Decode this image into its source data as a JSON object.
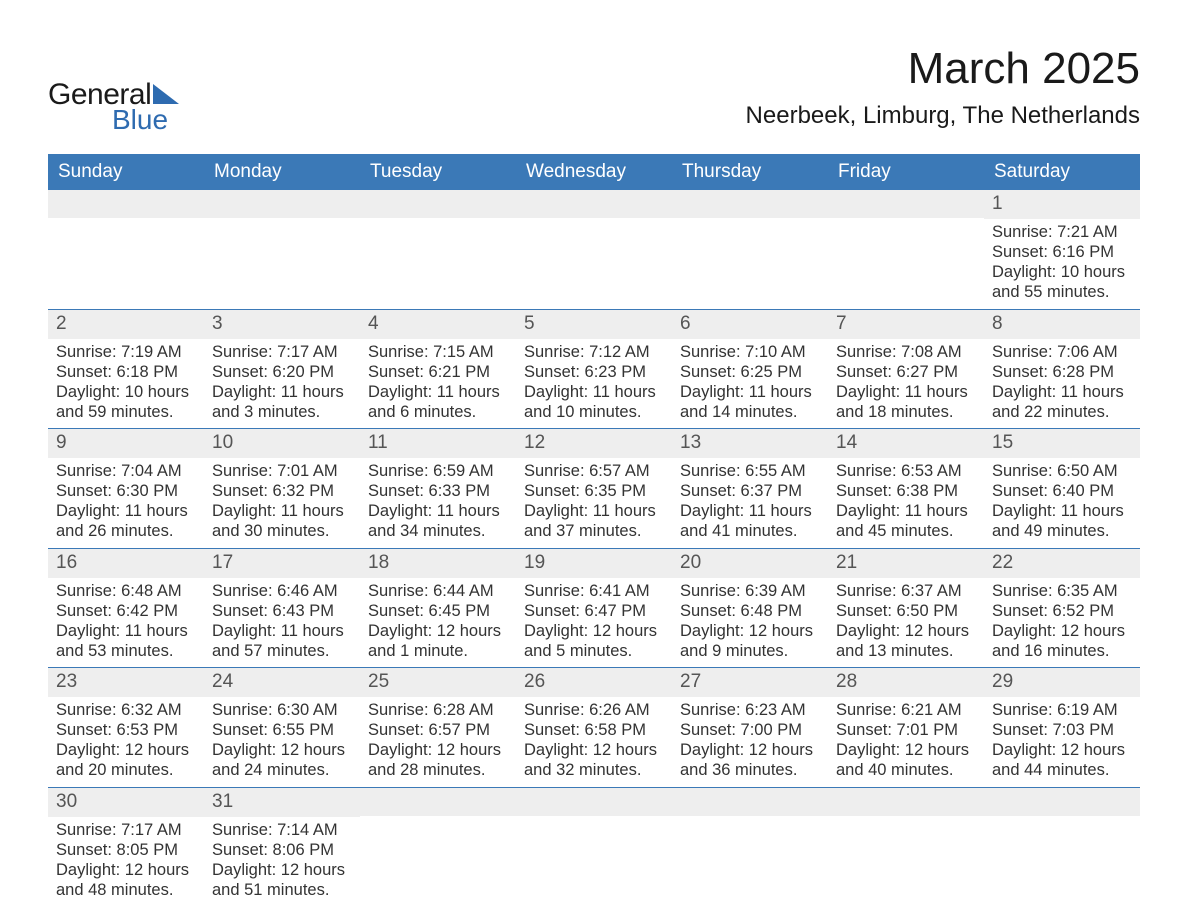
{
  "brand": {
    "general": "General",
    "blue": "Blue",
    "logo_color": "#2e6bb0"
  },
  "title": "March 2025",
  "location": "Neerbeek, Limburg, The Netherlands",
  "colors": {
    "header_bg": "#3b79b7",
    "header_text": "#ffffff",
    "band_bg": "#eeeeee",
    "row_border": "#3b79b7",
    "body_text": "#333333",
    "daynum_text": "#555555"
  },
  "dow": [
    "Sunday",
    "Monday",
    "Tuesday",
    "Wednesday",
    "Thursday",
    "Friday",
    "Saturday"
  ],
  "weeks": [
    [
      {
        "n": "",
        "lines": []
      },
      {
        "n": "",
        "lines": []
      },
      {
        "n": "",
        "lines": []
      },
      {
        "n": "",
        "lines": []
      },
      {
        "n": "",
        "lines": []
      },
      {
        "n": "",
        "lines": []
      },
      {
        "n": "1",
        "lines": [
          "Sunrise: 7:21 AM",
          "Sunset: 6:16 PM",
          "Daylight: 10 hours and 55 minutes."
        ]
      }
    ],
    [
      {
        "n": "2",
        "lines": [
          "Sunrise: 7:19 AM",
          "Sunset: 6:18 PM",
          "Daylight: 10 hours and 59 minutes."
        ]
      },
      {
        "n": "3",
        "lines": [
          "Sunrise: 7:17 AM",
          "Sunset: 6:20 PM",
          "Daylight: 11 hours and 3 minutes."
        ]
      },
      {
        "n": "4",
        "lines": [
          "Sunrise: 7:15 AM",
          "Sunset: 6:21 PM",
          "Daylight: 11 hours and 6 minutes."
        ]
      },
      {
        "n": "5",
        "lines": [
          "Sunrise: 7:12 AM",
          "Sunset: 6:23 PM",
          "Daylight: 11 hours and 10 minutes."
        ]
      },
      {
        "n": "6",
        "lines": [
          "Sunrise: 7:10 AM",
          "Sunset: 6:25 PM",
          "Daylight: 11 hours and 14 minutes."
        ]
      },
      {
        "n": "7",
        "lines": [
          "Sunrise: 7:08 AM",
          "Sunset: 6:27 PM",
          "Daylight: 11 hours and 18 minutes."
        ]
      },
      {
        "n": "8",
        "lines": [
          "Sunrise: 7:06 AM",
          "Sunset: 6:28 PM",
          "Daylight: 11 hours and 22 minutes."
        ]
      }
    ],
    [
      {
        "n": "9",
        "lines": [
          "Sunrise: 7:04 AM",
          "Sunset: 6:30 PM",
          "Daylight: 11 hours and 26 minutes."
        ]
      },
      {
        "n": "10",
        "lines": [
          "Sunrise: 7:01 AM",
          "Sunset: 6:32 PM",
          "Daylight: 11 hours and 30 minutes."
        ]
      },
      {
        "n": "11",
        "lines": [
          "Sunrise: 6:59 AM",
          "Sunset: 6:33 PM",
          "Daylight: 11 hours and 34 minutes."
        ]
      },
      {
        "n": "12",
        "lines": [
          "Sunrise: 6:57 AM",
          "Sunset: 6:35 PM",
          "Daylight: 11 hours and 37 minutes."
        ]
      },
      {
        "n": "13",
        "lines": [
          "Sunrise: 6:55 AM",
          "Sunset: 6:37 PM",
          "Daylight: 11 hours and 41 minutes."
        ]
      },
      {
        "n": "14",
        "lines": [
          "Sunrise: 6:53 AM",
          "Sunset: 6:38 PM",
          "Daylight: 11 hours and 45 minutes."
        ]
      },
      {
        "n": "15",
        "lines": [
          "Sunrise: 6:50 AM",
          "Sunset: 6:40 PM",
          "Daylight: 11 hours and 49 minutes."
        ]
      }
    ],
    [
      {
        "n": "16",
        "lines": [
          "Sunrise: 6:48 AM",
          "Sunset: 6:42 PM",
          "Daylight: 11 hours and 53 minutes."
        ]
      },
      {
        "n": "17",
        "lines": [
          "Sunrise: 6:46 AM",
          "Sunset: 6:43 PM",
          "Daylight: 11 hours and 57 minutes."
        ]
      },
      {
        "n": "18",
        "lines": [
          "Sunrise: 6:44 AM",
          "Sunset: 6:45 PM",
          "Daylight: 12 hours and 1 minute."
        ]
      },
      {
        "n": "19",
        "lines": [
          "Sunrise: 6:41 AM",
          "Sunset: 6:47 PM",
          "Daylight: 12 hours and 5 minutes."
        ]
      },
      {
        "n": "20",
        "lines": [
          "Sunrise: 6:39 AM",
          "Sunset: 6:48 PM",
          "Daylight: 12 hours and 9 minutes."
        ]
      },
      {
        "n": "21",
        "lines": [
          "Sunrise: 6:37 AM",
          "Sunset: 6:50 PM",
          "Daylight: 12 hours and 13 minutes."
        ]
      },
      {
        "n": "22",
        "lines": [
          "Sunrise: 6:35 AM",
          "Sunset: 6:52 PM",
          "Daylight: 12 hours and 16 minutes."
        ]
      }
    ],
    [
      {
        "n": "23",
        "lines": [
          "Sunrise: 6:32 AM",
          "Sunset: 6:53 PM",
          "Daylight: 12 hours and 20 minutes."
        ]
      },
      {
        "n": "24",
        "lines": [
          "Sunrise: 6:30 AM",
          "Sunset: 6:55 PM",
          "Daylight: 12 hours and 24 minutes."
        ]
      },
      {
        "n": "25",
        "lines": [
          "Sunrise: 6:28 AM",
          "Sunset: 6:57 PM",
          "Daylight: 12 hours and 28 minutes."
        ]
      },
      {
        "n": "26",
        "lines": [
          "Sunrise: 6:26 AM",
          "Sunset: 6:58 PM",
          "Daylight: 12 hours and 32 minutes."
        ]
      },
      {
        "n": "27",
        "lines": [
          "Sunrise: 6:23 AM",
          "Sunset: 7:00 PM",
          "Daylight: 12 hours and 36 minutes."
        ]
      },
      {
        "n": "28",
        "lines": [
          "Sunrise: 6:21 AM",
          "Sunset: 7:01 PM",
          "Daylight: 12 hours and 40 minutes."
        ]
      },
      {
        "n": "29",
        "lines": [
          "Sunrise: 6:19 AM",
          "Sunset: 7:03 PM",
          "Daylight: 12 hours and 44 minutes."
        ]
      }
    ],
    [
      {
        "n": "30",
        "lines": [
          "Sunrise: 7:17 AM",
          "Sunset: 8:05 PM",
          "Daylight: 12 hours and 48 minutes."
        ]
      },
      {
        "n": "31",
        "lines": [
          "Sunrise: 7:14 AM",
          "Sunset: 8:06 PM",
          "Daylight: 12 hours and 51 minutes."
        ]
      },
      {
        "n": "",
        "lines": []
      },
      {
        "n": "",
        "lines": []
      },
      {
        "n": "",
        "lines": []
      },
      {
        "n": "",
        "lines": []
      },
      {
        "n": "",
        "lines": []
      }
    ]
  ]
}
